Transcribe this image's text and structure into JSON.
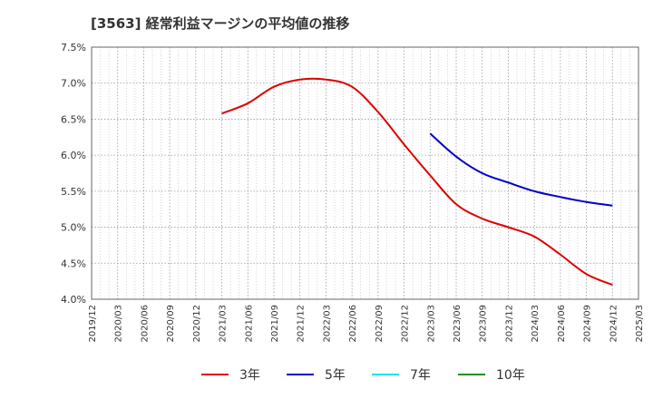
{
  "chart_data": {
    "type": "line",
    "title": "[3563]  経常利益マージンの平均値の推移",
    "xlabel": "",
    "ylabel": "",
    "ylim": [
      4.0,
      7.5
    ],
    "y_ticks": [
      "7.5%",
      "7.0%",
      "6.5%",
      "6.0%",
      "5.5%",
      "5.0%",
      "4.5%",
      "4.0%"
    ],
    "x_ticks": [
      "2019/12",
      "2020/03",
      "2020/06",
      "2020/09",
      "2020/12",
      "2021/03",
      "2021/06",
      "2021/09",
      "2021/12",
      "2022/03",
      "2022/06",
      "2022/09",
      "2022/12",
      "2023/03",
      "2023/06",
      "2023/09",
      "2023/12",
      "2024/03",
      "2024/06",
      "2024/09",
      "2024/12",
      "2025/03"
    ],
    "grid": true,
    "legend_position": "bottom",
    "series": [
      {
        "name": "3年",
        "color": "#dd0000",
        "points": [
          [
            "2021/03",
            6.58
          ],
          [
            "2021/06",
            6.72
          ],
          [
            "2021/09",
            6.95
          ],
          [
            "2021/12",
            7.05
          ],
          [
            "2022/03",
            7.05
          ],
          [
            "2022/06",
            6.95
          ],
          [
            "2022/09",
            6.6
          ],
          [
            "2022/12",
            6.15
          ],
          [
            "2023/03",
            5.72
          ],
          [
            "2023/06",
            5.32
          ],
          [
            "2023/09",
            5.12
          ],
          [
            "2023/12",
            5.0
          ],
          [
            "2024/03",
            4.87
          ],
          [
            "2024/06",
            4.62
          ],
          [
            "2024/09",
            4.35
          ],
          [
            "2024/12",
            4.2
          ]
        ]
      },
      {
        "name": "5年",
        "color": "#0000cc",
        "points": [
          [
            "2023/03",
            6.3
          ],
          [
            "2023/06",
            5.98
          ],
          [
            "2023/09",
            5.75
          ],
          [
            "2023/12",
            5.62
          ],
          [
            "2024/03",
            5.5
          ],
          [
            "2024/06",
            5.42
          ],
          [
            "2024/09",
            5.35
          ],
          [
            "2024/12",
            5.3
          ]
        ]
      },
      {
        "name": "7年",
        "color": "#00e5ee",
        "points": []
      },
      {
        "name": "10年",
        "color": "#228b22",
        "points": []
      }
    ]
  }
}
